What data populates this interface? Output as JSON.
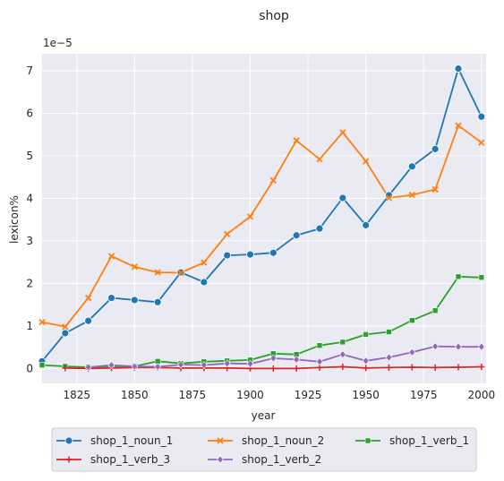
{
  "chart_data": {
    "type": "line",
    "title": "shop",
    "xlabel": "year",
    "ylabel": "lexicon%",
    "y_scale_label": "1e−5",
    "xlim": [
      1810,
      2002
    ],
    "ylim": [
      -0.35,
      7.4
    ],
    "y_multiplier": 1e-05,
    "x_ticks": [
      "1825",
      "1850",
      "1875",
      "1900",
      "1925",
      "1950",
      "1975",
      "2000"
    ],
    "y_ticks": [
      "0",
      "1",
      "2",
      "3",
      "4",
      "5",
      "6",
      "7"
    ],
    "grid": true,
    "legend_position": "bottom-outside",
    "series": [
      {
        "name": "shop_1_noun_1",
        "color": "#1f77b4",
        "marker": "circle",
        "x": [
          1810,
          1820,
          1830,
          1840,
          1850,
          1860,
          1870,
          1880,
          1890,
          1900,
          1910,
          1920,
          1930,
          1940,
          1950,
          1960,
          1970,
          1980,
          1990,
          2000
        ],
        "y": [
          0.17,
          0.83,
          1.12,
          1.66,
          1.61,
          1.56,
          2.26,
          2.03,
          2.66,
          2.68,
          2.72,
          3.13,
          3.29,
          4.01,
          3.37,
          4.07,
          4.75,
          5.16,
          7.05,
          5.92
        ]
      },
      {
        "name": "shop_1_noun_2",
        "color": "#ff7f0e",
        "marker": "x",
        "x": [
          1810,
          1820,
          1830,
          1840,
          1850,
          1860,
          1870,
          1880,
          1890,
          1900,
          1910,
          1920,
          1930,
          1940,
          1950,
          1960,
          1970,
          1980,
          1990,
          2000
        ],
        "y": [
          1.09,
          0.98,
          1.66,
          2.64,
          2.39,
          2.26,
          2.25,
          2.49,
          3.16,
          3.57,
          4.42,
          5.36,
          4.92,
          5.55,
          4.87,
          4.01,
          4.08,
          4.21,
          5.71,
          5.31
        ]
      },
      {
        "name": "shop_1_verb_1",
        "color": "#2ca02c",
        "marker": "square",
        "x": [
          1810,
          1820,
          1830,
          1840,
          1850,
          1860,
          1870,
          1880,
          1890,
          1900,
          1910,
          1920,
          1930,
          1940,
          1950,
          1960,
          1970,
          1980,
          1990,
          2000
        ],
        "y": [
          0.08,
          0.05,
          0.03,
          0.05,
          0.05,
          0.17,
          0.12,
          0.16,
          0.18,
          0.2,
          0.35,
          0.33,
          0.54,
          0.62,
          0.8,
          0.86,
          1.13,
          1.36,
          2.16,
          2.14
        ]
      },
      {
        "name": "shop_1_verb_3",
        "color": "#d62728",
        "marker": "plus",
        "x": [
          1820,
          1830,
          1840,
          1850,
          1860,
          1870,
          1880,
          1890,
          1900,
          1910,
          1920,
          1930,
          1940,
          1950,
          1960,
          1970,
          1980,
          1990,
          2000
        ],
        "y": [
          0.01,
          0.0,
          0.01,
          0.02,
          0.02,
          0.01,
          0.01,
          0.01,
          0.0,
          0.0,
          0.0,
          0.02,
          0.04,
          0.01,
          0.02,
          0.03,
          0.02,
          0.03,
          0.04
        ]
      },
      {
        "name": "shop_1_verb_2",
        "color": "#9467bd",
        "marker": "diamond",
        "x": [
          1830,
          1840,
          1850,
          1860,
          1870,
          1880,
          1890,
          1900,
          1910,
          1920,
          1930,
          1940,
          1950,
          1960,
          1970,
          1980,
          1990,
          2000
        ],
        "y": [
          0.03,
          0.08,
          0.05,
          0.04,
          0.09,
          0.08,
          0.12,
          0.11,
          0.24,
          0.21,
          0.16,
          0.33,
          0.18,
          0.26,
          0.38,
          0.52,
          0.51,
          0.51
        ]
      }
    ]
  }
}
